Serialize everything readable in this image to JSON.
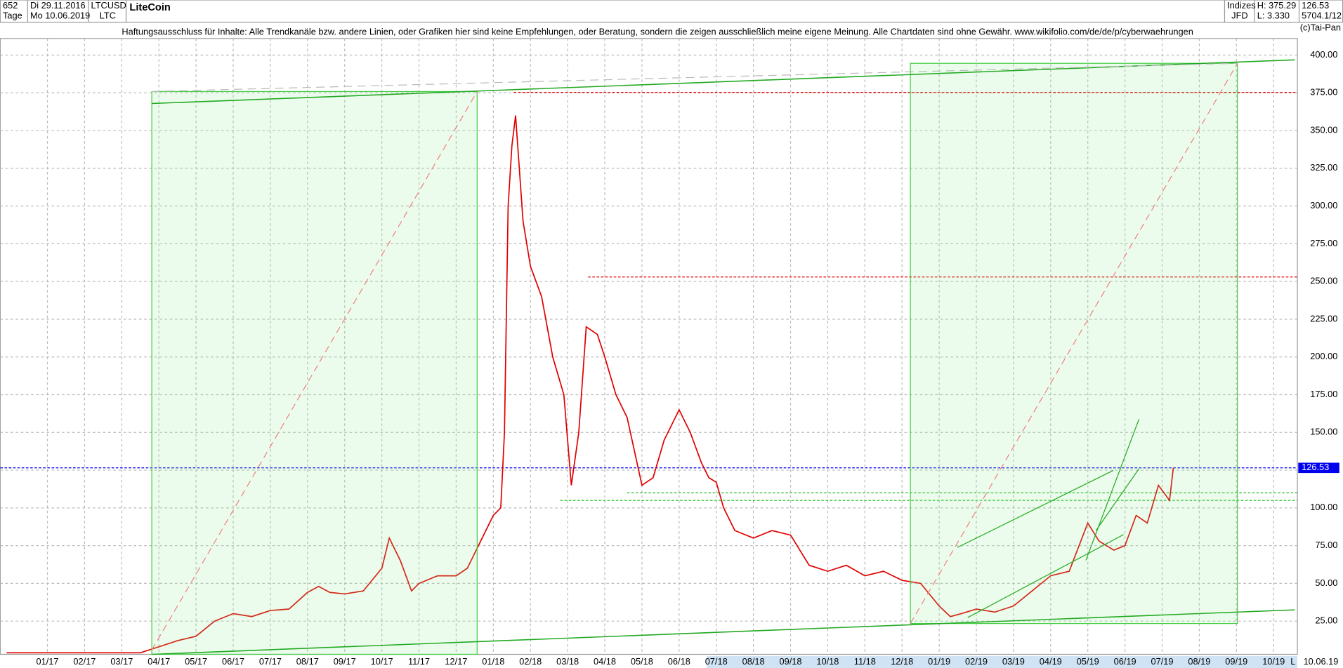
{
  "header": {
    "count": "652",
    "start": "Di 29.11.2016",
    "symbol": "LTCUSD",
    "name": "LiteCoin",
    "period": "Tage",
    "end": "Mo 10.06.2019",
    "short": "LTC",
    "disclaimer": "Haftungsausschluss für Inhalte: Alle Trendkanäle bzw. andere Linien, oder Grafiken hier sind keine Empfehlungen, oder Beratung, sondern die zeigen ausschließlich meine eigene Meinung. Alle Chartdaten sind ohne Gewähr.  www.wikifolio.com/de/de/p/cyberwaehrungen",
    "index": "Indizes",
    "broker": "JFD",
    "high": "H: 375.29",
    "low": "L: 3.330",
    "last": "126.53",
    "info": "5704.1/12",
    "copyright": "(c)Tai-Pan",
    "scale_mode": "L",
    "end_date": "10.06.19"
  },
  "chart_data": {
    "type": "line",
    "x": [
      -1.1,
      1,
      2.5,
      3,
      3.5,
      4,
      4.5,
      5,
      5.5,
      6,
      6.5,
      7,
      7.3,
      7.6,
      8,
      8.5,
      9,
      9.2,
      9.5,
      9.8,
      10,
      10.5,
      11,
      11.3,
      11.6,
      12,
      12.2,
      12.3,
      12.4,
      12.5,
      12.6,
      12.8,
      13,
      13.3,
      13.6,
      13.9,
      14.1,
      14.3,
      14.5,
      14.8,
      15,
      15.3,
      15.6,
      16,
      16.3,
      16.6,
      17,
      17.3,
      17.6,
      17.8,
      18,
      18.2,
      18.5,
      19,
      19.5,
      20,
      20.5,
      21,
      21.5,
      22,
      22.5,
      23,
      23.5,
      24,
      24.3,
      24.6,
      25,
      25.5,
      26,
      26.5,
      27,
      27.5,
      28,
      28.3,
      28.7,
      29,
      29.3,
      29.6,
      29.9,
      30.2,
      30.3
    ],
    "series": [
      {
        "name": "LTCUSD",
        "color": "#e00000",
        "values": [
          4,
          4,
          4,
          8,
          12,
          15,
          25,
          30,
          28,
          32,
          33,
          44,
          48,
          44,
          43,
          45,
          60,
          80,
          65,
          45,
          50,
          55,
          55,
          60,
          75,
          95,
          100,
          150,
          300,
          340,
          360,
          290,
          260,
          240,
          200,
          175,
          115,
          150,
          220,
          215,
          200,
          175,
          160,
          115,
          120,
          145,
          165,
          150,
          130,
          120,
          117,
          100,
          85,
          80,
          85,
          82,
          62,
          58,
          62,
          55,
          58,
          52,
          50,
          35,
          28,
          30,
          33,
          31,
          35,
          45,
          55,
          58,
          90,
          78,
          72,
          75,
          95,
          90,
          115,
          105,
          126.53
        ]
      }
    ],
    "xlim": [
      -1.27,
      33.64
    ],
    "ylim": [
      3,
      411
    ],
    "xticks": [
      {
        "value": 0,
        "label": "01/17"
      },
      {
        "value": 1,
        "label": "02/17"
      },
      {
        "value": 2,
        "label": "03/17"
      },
      {
        "value": 3,
        "label": "04/17"
      },
      {
        "value": 4,
        "label": "05/17"
      },
      {
        "value": 5,
        "label": "06/17"
      },
      {
        "value": 6,
        "label": "07/17"
      },
      {
        "value": 7,
        "label": "08/17"
      },
      {
        "value": 8,
        "label": "09/17"
      },
      {
        "value": 9,
        "label": "10/17"
      },
      {
        "value": 10,
        "label": "11/17"
      },
      {
        "value": 11,
        "label": "12/17"
      },
      {
        "value": 12,
        "label": "01/18"
      },
      {
        "value": 13,
        "label": "02/18"
      },
      {
        "value": 14,
        "label": "03/18"
      },
      {
        "value": 15,
        "label": "04/18"
      },
      {
        "value": 16,
        "label": "05/18"
      },
      {
        "value": 17,
        "label": "06/18"
      },
      {
        "value": 18,
        "label": "07/18"
      },
      {
        "value": 19,
        "label": "08/18"
      },
      {
        "value": 20,
        "label": "09/18"
      },
      {
        "value": 21,
        "label": "10/18"
      },
      {
        "value": 22,
        "label": "11/18"
      },
      {
        "value": 23,
        "label": "12/18"
      },
      {
        "value": 24,
        "label": "01/19"
      },
      {
        "value": 25,
        "label": "02/19"
      },
      {
        "value": 26,
        "label": "03/19"
      },
      {
        "value": 27,
        "label": "04/19"
      },
      {
        "value": 28,
        "label": "05/19"
      },
      {
        "value": 29,
        "label": "06/19"
      },
      {
        "value": 30,
        "label": "07/19"
      },
      {
        "value": 31,
        "label": "08/19"
      },
      {
        "value": 32,
        "label": "09/19"
      },
      {
        "value": 33,
        "label": "10/19"
      }
    ],
    "yticks": [
      {
        "value": 25,
        "label": "25.00"
      },
      {
        "value": 50,
        "label": "50.00"
      },
      {
        "value": 75,
        "label": "75.00"
      },
      {
        "value": 100,
        "label": "100.00"
      },
      {
        "value": 125,
        "label": "125.00"
      },
      {
        "value": 150,
        "label": "150.00"
      },
      {
        "value": 175,
        "label": "175.00"
      },
      {
        "value": 200,
        "label": "200.00"
      },
      {
        "value": 225,
        "label": "225.00"
      },
      {
        "value": 250,
        "label": "250.00"
      },
      {
        "value": 275,
        "label": "275.00"
      },
      {
        "value": 300,
        "label": "300.00"
      },
      {
        "value": 325,
        "label": "325.00"
      },
      {
        "value": 350,
        "label": "350.00"
      },
      {
        "value": 375,
        "label": "375.00"
      },
      {
        "value": 400,
        "label": "400.00"
      }
    ],
    "grid": true,
    "levels": [
      {
        "value": 375.29,
        "x": 12.55,
        "color": "#e00000"
      },
      {
        "value": 253,
        "x": 14.55,
        "color": "#e00000"
      },
      {
        "value": 110,
        "x": 15.6,
        "color": "#22bb22"
      },
      {
        "value": 105,
        "x": 13.8,
        "color": "#22bb22"
      },
      {
        "value": 126.53,
        "x": -1.27,
        "color": "#0000ee"
      }
    ]
  }
}
